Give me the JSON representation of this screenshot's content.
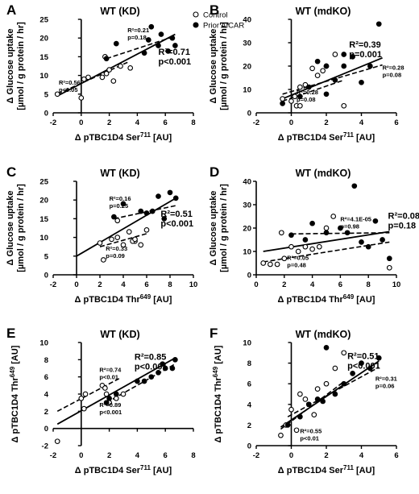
{
  "legend": {
    "control": "Control",
    "aicar": "Prior AICAR"
  },
  "chart_data": [
    {
      "panel": "A",
      "title": "WT (KD)",
      "type": "scatter",
      "xlabel": "Δ pTBC1D4 Ser",
      "xsup": "711",
      "xunit": " [AU]",
      "ylabel": [
        "Δ Glucose uptake",
        "[µmol / g protein / hr]"
      ],
      "yunit_sup": "",
      "xlim": [
        -2,
        8
      ],
      "ylim": [
        0,
        25
      ],
      "xticks": [
        -2,
        0,
        2,
        4,
        6,
        8
      ],
      "yticks": [
        0,
        5,
        10,
        15,
        20,
        25
      ],
      "series": [
        {
          "name": "Control",
          "filled": false,
          "x": [
            -1.7,
            0.0,
            0.2,
            0.5,
            1.5,
            1.8,
            2.0,
            2.3,
            2.8,
            1.7,
            3.5
          ],
          "y": [
            5.0,
            4.0,
            9.0,
            9.5,
            9.5,
            10.5,
            11.5,
            8.5,
            12.5,
            15.0,
            12.0
          ]
        },
        {
          "name": "Prior AICAR",
          "filled": true,
          "x": [
            1.8,
            2.5,
            4.5,
            4.8,
            5.0,
            5.5,
            5.7,
            6.2,
            6.5,
            6.7
          ],
          "y": [
            14.5,
            18.5,
            16.0,
            19.5,
            23.0,
            18.0,
            21.0,
            16.5,
            20.0,
            18.0
          ]
        }
      ],
      "fits": [
        {
          "kind": "dashed",
          "x": [
            -1.7,
            3.3
          ],
          "y": [
            5.0,
            13.5
          ]
        },
        {
          "kind": "dashed",
          "x": [
            1.8,
            6.7
          ],
          "y": [
            14.5,
            20.5
          ]
        },
        {
          "kind": "solid",
          "x": [
            -1.7,
            6.7
          ],
          "y": [
            4.5,
            21.0
          ]
        }
      ],
      "annotations": [
        {
          "lines": [
            "R²=0.21",
            "p=0.18"
          ],
          "size": "small",
          "pos": [
            3.3,
            21.5
          ]
        },
        {
          "lines": [
            "R²=0.71",
            "p<0.001"
          ],
          "size": "big",
          "pos": [
            5.5,
            15.5
          ]
        },
        {
          "lines": [
            "R²=0.56",
            "p<0.05"
          ],
          "size": "small",
          "pos": [
            -1.6,
            7.5
          ]
        }
      ]
    },
    {
      "panel": "B",
      "title": "WT (mdKO)",
      "type": "scatter",
      "xlabel": "Δ pTBC1D4 Ser",
      "xsup": "711",
      "xunit": " [AU]",
      "ylabel": [
        "Δ Glucose uptake",
        "[µmol / g protein / hr]"
      ],
      "xlim": [
        -2,
        6
      ],
      "ylim": [
        0,
        40
      ],
      "xticks": [
        -2,
        0,
        2,
        4,
        6
      ],
      "yticks": [
        0,
        10,
        20,
        30,
        40
      ],
      "series": [
        {
          "name": "Control",
          "filled": false,
          "x": [
            -0.5,
            0.0,
            0.5,
            0.8,
            1.2,
            1.5,
            1.8,
            2.0,
            2.5,
            3.0,
            0.3,
            0.5,
            0.2
          ],
          "y": [
            6.0,
            5.0,
            11.0,
            12.0,
            19.0,
            16.0,
            18.0,
            20.0,
            25.0,
            3.0,
            3.0,
            3.0,
            7.0
          ]
        },
        {
          "name": "Prior AICAR",
          "filled": true,
          "x": [
            -0.5,
            0.5,
            1.0,
            1.5,
            2.0,
            2.5,
            3.0,
            3.5,
            4.0,
            4.5,
            5.0,
            3.0,
            2.0
          ],
          "y": [
            4.0,
            7.0,
            11.0,
            22.0,
            8.0,
            14.0,
            20.0,
            24.0,
            13.0,
            20.0,
            38.0,
            25.0,
            20.0
          ]
        }
      ],
      "fits": [
        {
          "kind": "dashed",
          "x": [
            -0.5,
            3.0
          ],
          "y": [
            5.0,
            14.0
          ]
        },
        {
          "kind": "dashed",
          "x": [
            -0.5,
            5.2
          ],
          "y": [
            8.0,
            20.5
          ]
        },
        {
          "kind": "solid",
          "x": [
            -0.5,
            5.2
          ],
          "y": [
            6.0,
            23.5
          ]
        }
      ],
      "annotations": [
        {
          "lines": [
            "R²=0.39",
            "p=0.001"
          ],
          "size": "big",
          "pos": [
            3.3,
            28.0
          ]
        },
        {
          "lines": [
            "R²=0.28",
            "p=0.08"
          ],
          "size": "small",
          "pos": [
            5.2,
            18.5
          ]
        },
        {
          "lines": [
            "R²=0.28",
            "p=0.08"
          ],
          "size": "small",
          "pos": [
            0.3,
            8.0
          ]
        }
      ]
    },
    {
      "panel": "C",
      "title": "WT (KD)",
      "type": "scatter",
      "xlabel": "Δ pTBC1D4 Thr",
      "xsup": "649",
      "xunit": " [AU]",
      "ylabel": [
        "Δ Glucose uptake",
        "[µmol / g protein / hr]"
      ],
      "xlim": [
        -2,
        10
      ],
      "ylim": [
        0,
        25
      ],
      "xticks": [
        -2,
        0,
        2,
        4,
        6,
        8,
        10
      ],
      "yticks": [
        0,
        5,
        10,
        15,
        20,
        25
      ],
      "series": [
        {
          "name": "Control",
          "filled": false,
          "x": [
            2.0,
            2.3,
            3.0,
            3.5,
            4.0,
            4.5,
            5.0,
            5.5,
            6.0,
            3.5,
            4.8,
            5.0
          ],
          "y": [
            8.5,
            4.0,
            9.5,
            10.0,
            8.0,
            11.5,
            9.0,
            8.0,
            12.0,
            14.5,
            9.0,
            9.5
          ]
        },
        {
          "name": "Prior AICAR",
          "filled": true,
          "x": [
            3.2,
            4.0,
            5.5,
            6.0,
            6.5,
            7.0,
            7.5,
            8.0,
            8.5
          ],
          "y": [
            15.5,
            19.0,
            17.0,
            16.5,
            17.0,
            21.0,
            15.0,
            22.0,
            20.5
          ]
        }
      ],
      "fits": [
        {
          "kind": "dashed",
          "x": [
            2.0,
            6.0
          ],
          "y": [
            7.5,
            11.0
          ]
        },
        {
          "kind": "dashed",
          "x": [
            3.2,
            8.5
          ],
          "y": [
            15.0,
            18.5
          ]
        },
        {
          "kind": "solid",
          "x": [
            0.0,
            8.5
          ],
          "y": [
            5.0,
            20.5
          ]
        }
      ],
      "annotations": [
        {
          "lines": [
            "R²=0.16",
            "p=0.25"
          ],
          "size": "small",
          "pos": [
            2.8,
            19.8
          ]
        },
        {
          "lines": [
            "R²=0.51",
            "p<0.001"
          ],
          "size": "big",
          "pos": [
            7.2,
            15.5
          ]
        },
        {
          "lines": [
            "R²=0.33",
            "p=0.09"
          ],
          "size": "small",
          "pos": [
            2.5,
            6.5
          ]
        }
      ]
    },
    {
      "panel": "D",
      "title": "WT (mdKO)",
      "type": "scatter",
      "xlabel": "Δ pTBC1D4 Thr",
      "xsup": "649",
      "xunit": " [AU]",
      "ylabel": [
        "Δ Glucose uptake",
        "[µmol / g protein / hr]"
      ],
      "xlim": [
        0,
        10
      ],
      "ylim": [
        0,
        40
      ],
      "xticks": [
        0,
        2,
        4,
        6,
        8,
        10
      ],
      "yticks": [
        0,
        10,
        20,
        30,
        40
      ],
      "series": [
        {
          "name": "Control",
          "filled": false,
          "x": [
            0.5,
            1.0,
            1.5,
            2.0,
            2.5,
            3.0,
            3.5,
            4.0,
            4.5,
            5.0,
            5.5,
            9.5,
            1.8
          ],
          "y": [
            5.0,
            4.5,
            4.5,
            7.0,
            12.0,
            10.0,
            12.0,
            11.0,
            12.0,
            20.0,
            25.0,
            3.0,
            18.0
          ]
        },
        {
          "name": "Prior AICAR",
          "filled": true,
          "x": [
            2.5,
            3.5,
            4.0,
            5.0,
            6.0,
            7.0,
            7.5,
            8.0,
            8.5,
            9.0,
            9.5,
            6.5
          ],
          "y": [
            17.0,
            15.0,
            22.0,
            18.0,
            20.0,
            38.0,
            14.0,
            12.0,
            23.0,
            15.0,
            7.0,
            18.0
          ]
        }
      ],
      "fits": [
        {
          "kind": "dashed",
          "x": [
            0.5,
            9.5
          ],
          "y": [
            5.5,
            14.0
          ]
        },
        {
          "kind": "dashed",
          "x": [
            2.5,
            9.5
          ],
          "y": [
            17.5,
            18.0
          ]
        },
        {
          "kind": "solid",
          "x": [
            0.5,
            9.5
          ],
          "y": [
            10.0,
            18.5
          ]
        }
      ],
      "annotations": [
        {
          "lines": [
            "R²=4.1E-05",
            "p=0.98"
          ],
          "size": "small",
          "pos": [
            6.0,
            23.0
          ]
        },
        {
          "lines": [
            "R²=0.08",
            "p=0.18"
          ],
          "size": "big",
          "pos": [
            9.4,
            24.0
          ]
        },
        {
          "lines": [
            "R²=0.05",
            "p=0.48"
          ],
          "size": "small",
          "pos": [
            2.2,
            6.3
          ]
        }
      ]
    },
    {
      "panel": "E",
      "title": "WT (KD)",
      "type": "scatter",
      "xlabel": "Δ pTBC1D4 Ser",
      "xsup": "711",
      "xunit": " [AU]",
      "ylabel": [
        "Δ pTBC1D4 Thr",
        ""
      ],
      "ysup": "649",
      "yunit": " [AU]",
      "xlim": [
        -2,
        8
      ],
      "ylim": [
        -2,
        10
      ],
      "xticks": [
        -2,
        0,
        2,
        4,
        6,
        8
      ],
      "yticks": [
        -2,
        0,
        2,
        4,
        6,
        8,
        10
      ],
      "series": [
        {
          "name": "Control",
          "filled": false,
          "x": [
            -1.7,
            0.0,
            0.2,
            0.3,
            1.5,
            1.7,
            1.8,
            2.0,
            2.5,
            3.0
          ],
          "y": [
            -1.5,
            3.5,
            2.3,
            4.0,
            5.0,
            4.7,
            4.0,
            3.0,
            3.5,
            4.0
          ]
        },
        {
          "name": "Prior AICAR",
          "filled": true,
          "x": [
            1.8,
            2.0,
            2.5,
            4.0,
            4.5,
            5.0,
            5.5,
            6.0,
            6.5,
            6.7,
            5.8
          ],
          "y": [
            3.0,
            3.5,
            4.0,
            5.5,
            5.5,
            6.0,
            6.5,
            7.0,
            7.0,
            8.0,
            7.5
          ]
        }
      ],
      "fits": [
        {
          "kind": "dashed",
          "x": [
            -1.7,
            2.7
          ],
          "y": [
            2.0,
            5.8
          ]
        },
        {
          "kind": "dashed",
          "x": [
            1.8,
            6.7
          ],
          "y": [
            3.0,
            7.5
          ]
        },
        {
          "kind": "solid",
          "x": [
            -1.7,
            6.7
          ],
          "y": [
            0.5,
            8.2
          ]
        }
      ],
      "annotations": [
        {
          "lines": [
            "R²=0.74",
            "p<0.01"
          ],
          "size": "small",
          "pos": [
            1.3,
            6.6
          ]
        },
        {
          "lines": [
            "R²=0.85",
            "p<0.001"
          ],
          "size": "big",
          "pos": [
            3.8,
            8.0
          ]
        },
        {
          "lines": [
            "R²=0.89",
            "p<0.001"
          ],
          "size": "small",
          "pos": [
            1.3,
            2.5
          ]
        }
      ]
    },
    {
      "panel": "F",
      "title": "WT (mdKO)",
      "type": "scatter",
      "xlabel": "Δ pTBC1D4 Ser",
      "xsup": "711",
      "xunit": " [AU]",
      "ylabel": [
        "Δ pTBC1D4 Thr",
        ""
      ],
      "ysup": "649",
      "yunit": " [AU]",
      "xlim": [
        -2,
        6
      ],
      "ylim": [
        0,
        10
      ],
      "xticks": [
        -2,
        0,
        2,
        4,
        6
      ],
      "yticks": [
        0,
        2,
        4,
        6,
        8,
        10
      ],
      "series": [
        {
          "name": "Control",
          "filled": false,
          "x": [
            -0.6,
            -0.3,
            0.0,
            0.3,
            0.5,
            0.8,
            1.0,
            1.3,
            1.5,
            2.0,
            2.5,
            3.0
          ],
          "y": [
            1.0,
            2.0,
            3.5,
            1.5,
            5.0,
            4.5,
            4.0,
            3.0,
            5.5,
            6.0,
            7.5,
            9.0
          ]
        },
        {
          "name": "Prior AICAR",
          "filled": true,
          "x": [
            -0.2,
            0.5,
            1.0,
            1.5,
            1.8,
            2.0,
            2.5,
            3.0,
            3.5,
            4.0,
            4.5,
            5.0
          ],
          "y": [
            2.0,
            2.8,
            4.0,
            4.5,
            4.3,
            9.5,
            5.0,
            6.0,
            7.0,
            8.0,
            7.5,
            8.5
          ]
        }
      ],
      "fits": [
        {
          "kind": "dashed",
          "x": [
            -0.6,
            3.0
          ],
          "y": [
            1.6,
            6.2
          ]
        },
        {
          "kind": "dashed",
          "x": [
            -0.2,
            5.0
          ],
          "y": [
            2.8,
            7.6
          ]
        },
        {
          "kind": "solid",
          "x": [
            -0.6,
            5.0
          ],
          "y": [
            1.8,
            8.2
          ]
        }
      ],
      "annotations": [
        {
          "lines": [
            "R²=0.51",
            "p<0.001"
          ],
          "size": "big",
          "pos": [
            3.2,
            8.4
          ]
        },
        {
          "lines": [
            "R²=0.31",
            "p=0.06"
          ],
          "size": "small",
          "pos": [
            4.8,
            6.3
          ]
        },
        {
          "lines": [
            "R²=0.55",
            "p<0.01"
          ],
          "size": "small",
          "pos": [
            0.5,
            1.2
          ]
        }
      ]
    }
  ]
}
